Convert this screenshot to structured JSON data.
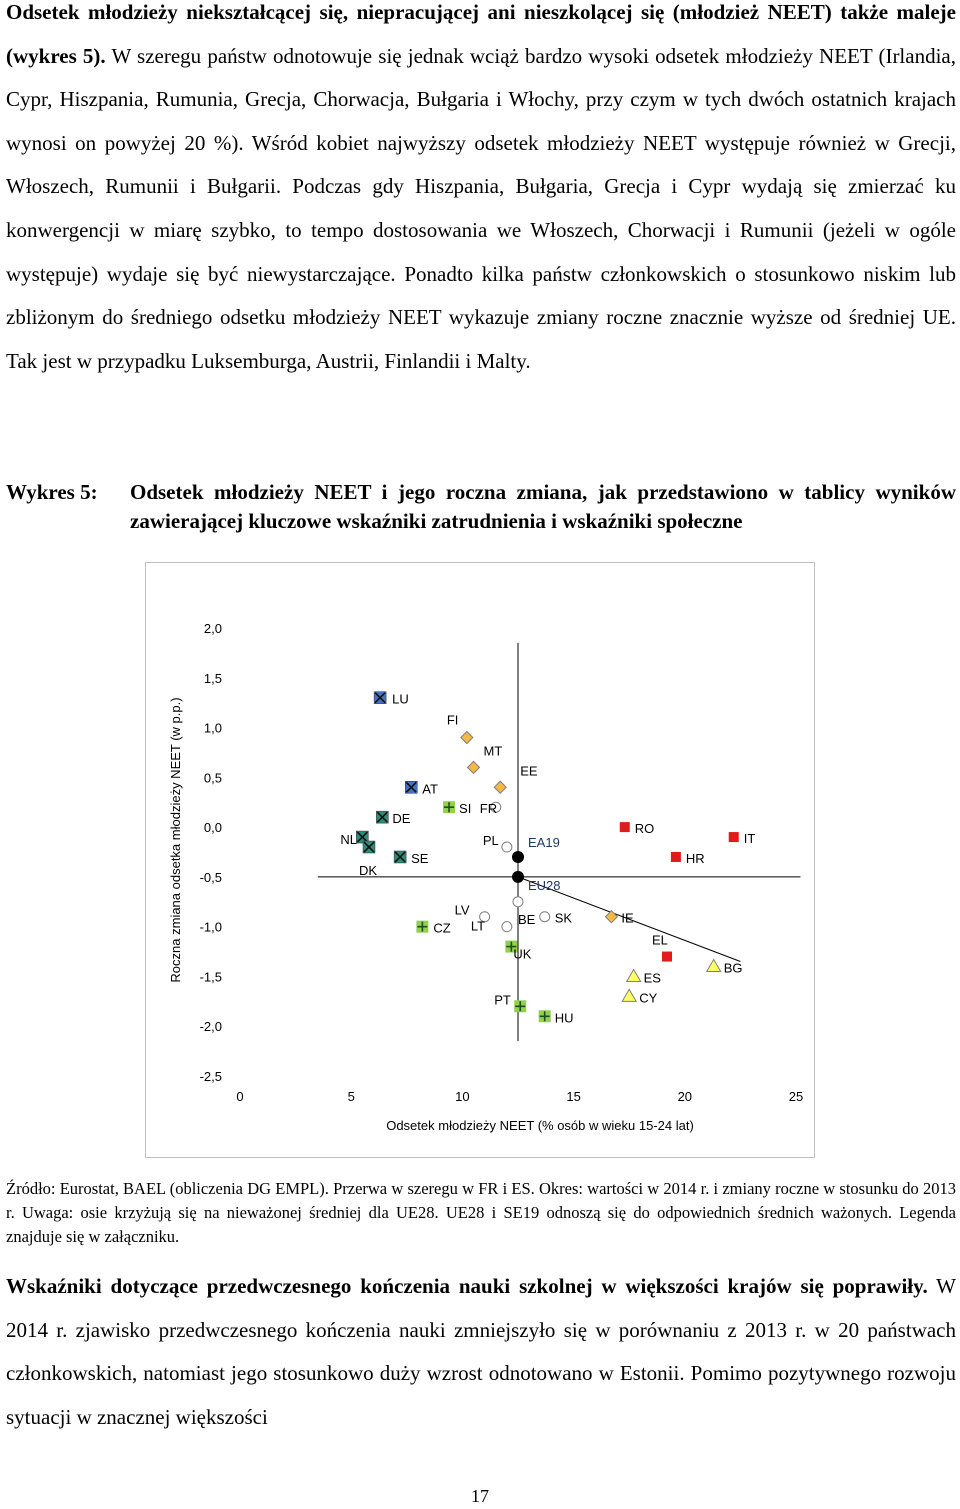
{
  "paragraph1": {
    "lead": "Odsetek młodzieży niekształcącej się, niepracującej ani nieszkolącej się (młodzież NEET) także maleje (wykres 5).",
    "body": " W szeregu państw odnotowuje się jednak wciąż bardzo wysoki odsetek młodzieży NEET (Irlandia, Cypr, Hiszpania, Rumunia, Grecja, Chorwacja, Bułgaria i Włochy, przy czym w tych dwóch ostatnich krajach wynosi on powyżej 20 %). Wśród kobiet najwyższy odsetek młodzieży NEET występuje również w Grecji, Włoszech, Rumunii i Bułgarii. Podczas gdy Hiszpania, Bułgaria, Grecja i Cypr wydają się zmierzać ku konwergencji w miarę szybko, to tempo dostosowania we Włoszech, Chorwacji i Rumunii (jeżeli w ogóle występuje) wydaje się być niewystarczające. Ponadto kilka państw członkowskich o stosunkowo niskim lub zbliżonym do średniego odsetku młodzieży NEET wykazuje zmiany roczne znacznie wyższe od średniej UE. Tak jest w przypadku Luksemburga, Austrii, Finlandii i Malty."
  },
  "figure_caption": {
    "label": "Wykres 5:",
    "text": "Odsetek młodzieży NEET i jego roczna zmiana, jak przedstawiono w tablicy wyników zawierającej kluczowe wskaźniki zatrudnienia i wskaźniki społeczne"
  },
  "chart_data": {
    "type": "scatter",
    "xlabel": "Odsetek młodzieży NEET (% osób w wieku 15-24 lat)",
    "ylabel": "Roczna zmiana odsetka młodzieży NEET (w p.p.)",
    "xlim": [
      0,
      25
    ],
    "ylim": [
      -2.5,
      2.0
    ],
    "x_ticks": [
      "0",
      "5",
      "10",
      "15",
      "20",
      "25"
    ],
    "y_ticks": [
      "2,0",
      "1,5",
      "1,0",
      "0,5",
      "0,0",
      "-0,5",
      "-1,0",
      "-1,5",
      "-2,0",
      "-2,5"
    ],
    "crossing_point": {
      "x": 12.5,
      "y": -0.5
    },
    "trend_line": {
      "from": [
        12.5,
        -0.5
      ],
      "to": [
        22.5,
        -1.35
      ]
    },
    "marker_colors": {
      "blue_x": "#4472c4",
      "teal_x": "#2e8b7a",
      "green_plus": "#92d050",
      "circle": "#ffffff",
      "diamond": "#f4b942",
      "red_square": "#e21a1a",
      "yellow_triangle": "#ffff66",
      "black": "#000000"
    },
    "points": [
      {
        "label": "LU",
        "x": 6.3,
        "y": 1.3,
        "marker": "blue_x"
      },
      {
        "label": "AT",
        "x": 7.7,
        "y": 0.4,
        "marker": "blue_x"
      },
      {
        "label": "DE",
        "x": 6.4,
        "y": 0.1,
        "marker": "teal_x"
      },
      {
        "label": "NL",
        "x": 5.5,
        "y": -0.1,
        "marker": "teal_x"
      },
      {
        "label": "DK",
        "x": 5.8,
        "y": -0.2,
        "marker": "teal_x"
      },
      {
        "label": "SE",
        "x": 7.2,
        "y": -0.3,
        "marker": "teal_x"
      },
      {
        "label": "FI",
        "x": 10.2,
        "y": 0.9,
        "marker": "diamond"
      },
      {
        "label": "MT",
        "x": 10.5,
        "y": 0.6,
        "marker": "diamond"
      },
      {
        "label": "EE",
        "x": 11.7,
        "y": 0.4,
        "marker": "diamond"
      },
      {
        "label": "SI",
        "x": 9.4,
        "y": 0.2,
        "marker": "green_plus"
      },
      {
        "label": "FR",
        "x": 11.5,
        "y": 0.2,
        "marker": "circle"
      },
      {
        "label": "PL",
        "x": 12.0,
        "y": -0.2,
        "marker": "circle"
      },
      {
        "label": "EA19",
        "x": 12.5,
        "y": -0.3,
        "marker": "black"
      },
      {
        "label": "EU28",
        "x": 12.5,
        "y": -0.5,
        "marker": "black"
      },
      {
        "label": "BE",
        "x": 12.5,
        "y": -0.75,
        "marker": "circle"
      },
      {
        "label": "LV",
        "x": 11.0,
        "y": -0.9,
        "marker": "circle"
      },
      {
        "label": "SK",
        "x": 13.7,
        "y": -0.9,
        "marker": "circle"
      },
      {
        "label": "IE",
        "x": 16.7,
        "y": -0.9,
        "marker": "diamond"
      },
      {
        "label": "LT",
        "x": 12.0,
        "y": -1.0,
        "marker": "circle"
      },
      {
        "label": "CZ",
        "x": 8.2,
        "y": -1.0,
        "marker": "green_plus"
      },
      {
        "label": "UK",
        "x": 12.2,
        "y": -1.2,
        "marker": "green_plus"
      },
      {
        "label": "PT",
        "x": 12.6,
        "y": -1.8,
        "marker": "green_plus"
      },
      {
        "label": "HU",
        "x": 13.7,
        "y": -1.9,
        "marker": "green_plus"
      },
      {
        "label": "RO",
        "x": 17.3,
        "y": 0.0,
        "marker": "red_square"
      },
      {
        "label": "IT",
        "x": 22.2,
        "y": -0.1,
        "marker": "red_square"
      },
      {
        "label": "HR",
        "x": 19.6,
        "y": -0.3,
        "marker": "red_square"
      },
      {
        "label": "EL",
        "x": 19.2,
        "y": -1.3,
        "marker": "red_square"
      },
      {
        "label": "BG",
        "x": 21.3,
        "y": -1.4,
        "marker": "yellow_triangle"
      },
      {
        "label": "ES",
        "x": 17.7,
        "y": -1.5,
        "marker": "yellow_triangle"
      },
      {
        "label": "CY",
        "x": 17.5,
        "y": -1.7,
        "marker": "yellow_triangle"
      }
    ]
  },
  "source_note": "Źródło: Eurostat, BAEL (obliczenia DG EMPL). Przerwa w szeregu w FR i ES. Okres: wartości w 2014 r. i zmiany roczne w stosunku do 2013 r. Uwaga: osie krzyżują się na nieważonej średniej dla UE28. UE28 i SE19 odnoszą się do odpowiednich średnich ważonych. Legenda znajduje się w załączniku.",
  "paragraph2": {
    "lead": "Wskaźniki dotyczące przedwczesnego kończenia nauki szkolnej w większości krajów się poprawiły.",
    "body": " W 2014 r. zjawisko przedwczesnego kończenia nauki zmniejszyło się w porównaniu z 2013 r. w 20 państwach członkowskich, natomiast jego stosunkowo duży wzrost odnotowano w Estonii. Pomimo pozytywnego rozwoju sytuacji w znacznej większości"
  },
  "page_number": "17"
}
